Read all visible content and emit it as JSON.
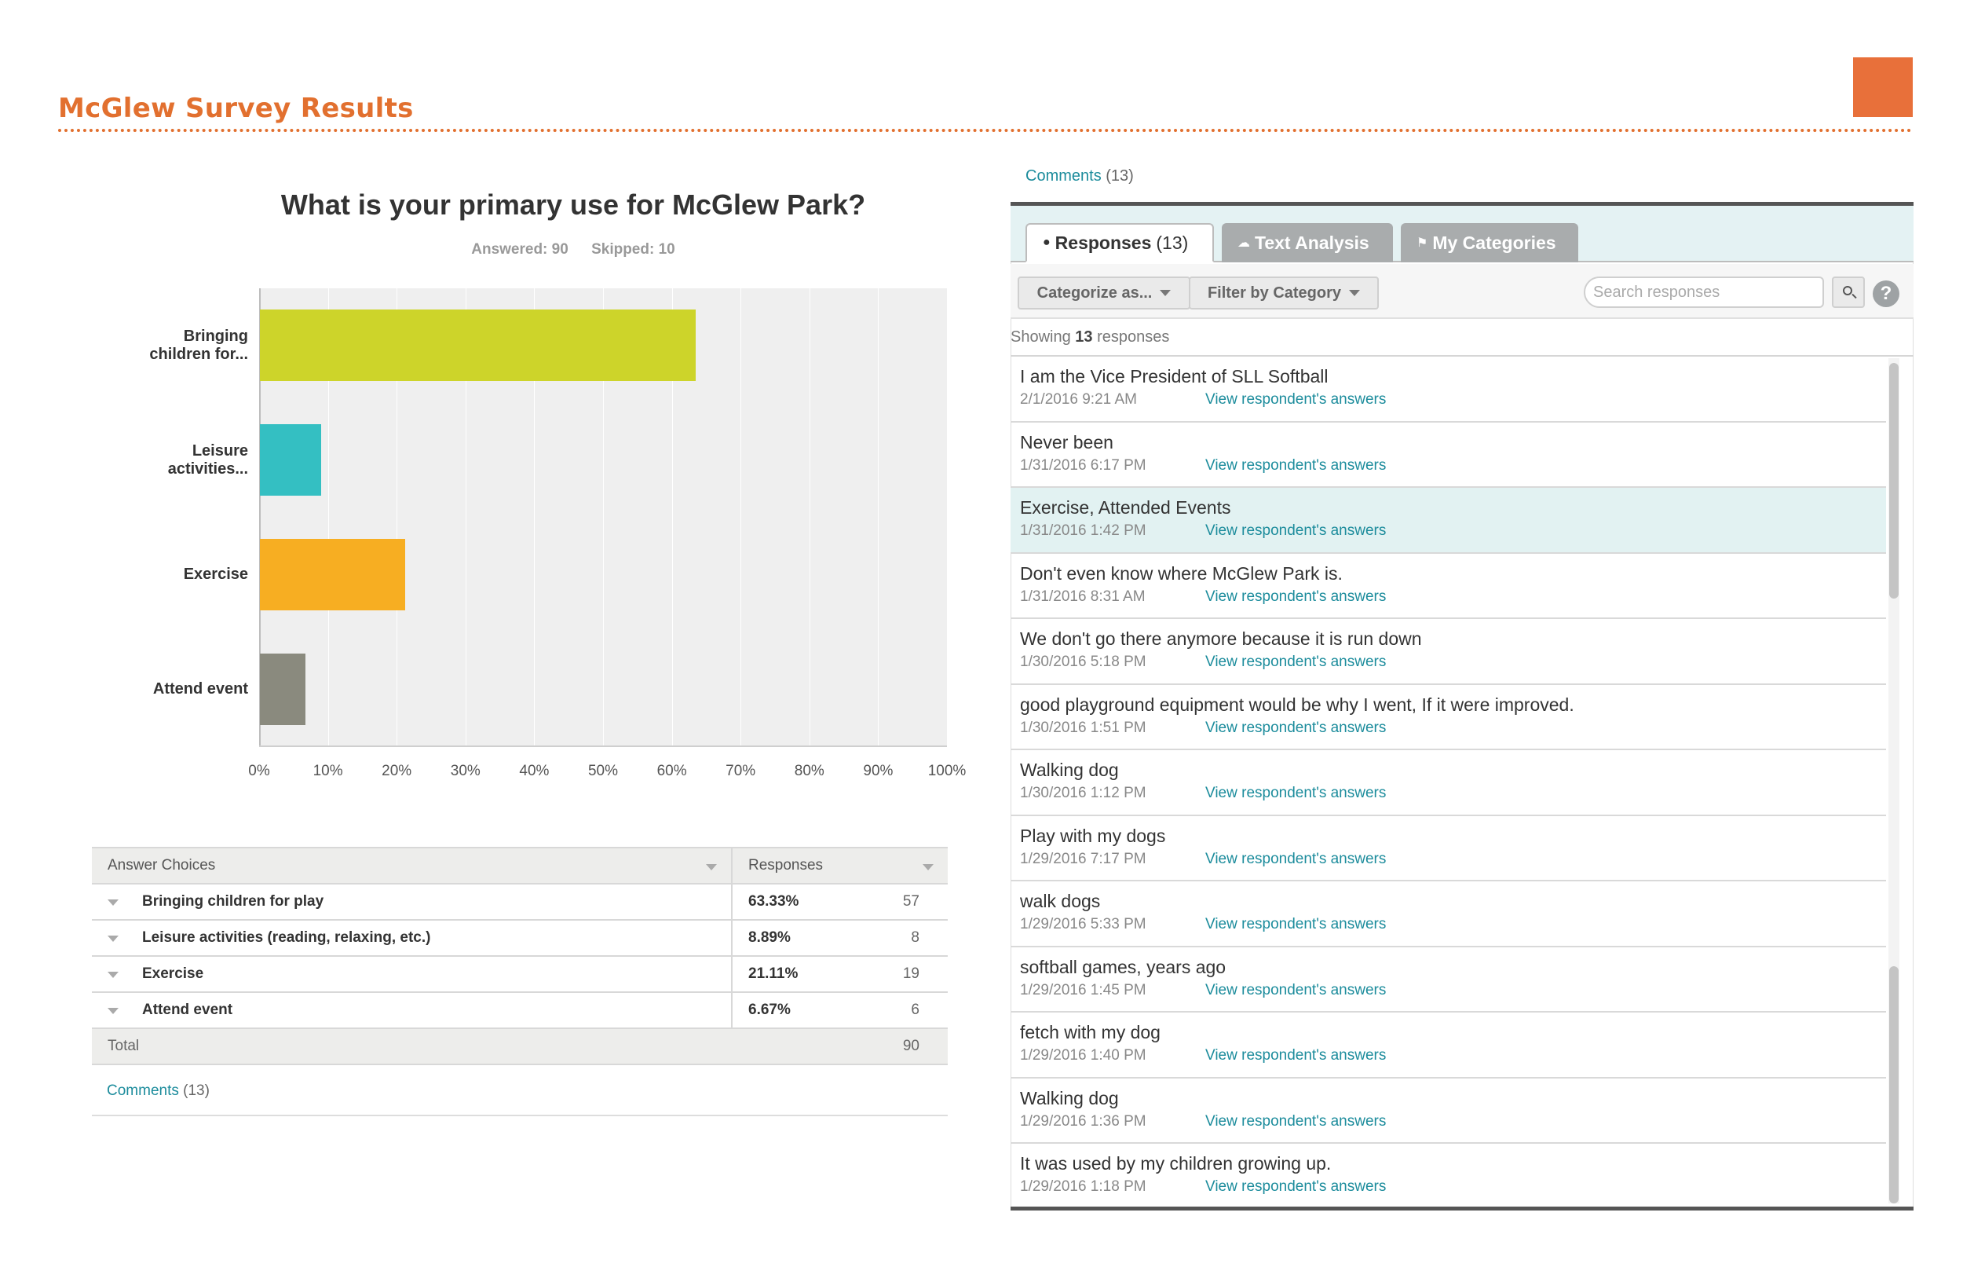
{
  "page": {
    "title": "McGlew Survey Results"
  },
  "question": {
    "title": "What is your primary use for McGlew Park?",
    "answered": "Answered: 90",
    "skipped": "Skipped: 10"
  },
  "chart_data": {
    "type": "bar",
    "orientation": "horizontal",
    "categories": [
      "Bringing children for...",
      "Leisure activities...",
      "Exercise",
      "Attend event"
    ],
    "values": [
      63.33,
      8.89,
      21.11,
      6.67
    ],
    "colors": [
      "#CDD42A",
      "#34BFC2",
      "#F7AE22",
      "#8A8A7E"
    ],
    "xlim": [
      0,
      100
    ],
    "x_ticks": [
      "0%",
      "10%",
      "20%",
      "30%",
      "40%",
      "50%",
      "60%",
      "70%",
      "80%",
      "90%",
      "100%"
    ],
    "grid": true
  },
  "table": {
    "headers": {
      "choices": "Answer Choices",
      "responses": "Responses"
    },
    "rows": [
      {
        "choice": "Bringing children for play",
        "percent": "63.33%",
        "count": "57"
      },
      {
        "choice": "Leisure activities (reading, relaxing, etc.)",
        "percent": "8.89%",
        "count": "8"
      },
      {
        "choice": "Exercise",
        "percent": "21.11%",
        "count": "19"
      },
      {
        "choice": "Attend event",
        "percent": "6.67%",
        "count": "6"
      }
    ],
    "total_label": "Total",
    "total_count": "90"
  },
  "comments": {
    "label": "Comments",
    "count": "(13)"
  },
  "panel": {
    "tabs": {
      "responses": "Responses",
      "responses_count": "(13)",
      "text_analysis": "Text Analysis",
      "my_categories": "My Categories"
    },
    "categorize_label": "Categorize as...",
    "filter_label": "Filter by Category",
    "search_placeholder": "Search responses",
    "help_label": "?",
    "showing_prefix": "Showing",
    "showing_count": "13",
    "showing_suffix": "responses",
    "link_label": "View respondent's answers"
  },
  "responses": [
    {
      "text": "I am the Vice President of SLL Softball",
      "date": "2/1/2016 9:21 AM"
    },
    {
      "text": "Never been",
      "date": "1/31/2016 6:17 PM"
    },
    {
      "text": "Exercise, Attended Events",
      "date": "1/31/2016 1:42 PM"
    },
    {
      "text": "Don't even know where McGlew Park is.",
      "date": "1/31/2016 8:31 AM"
    },
    {
      "text": "We don't go there anymore because it is run down",
      "date": "1/30/2016 5:18 PM"
    },
    {
      "text": "good playground equipment would be why I went, If it were improved.",
      "date": "1/30/2016 1:51 PM"
    },
    {
      "text": "Walking dog",
      "date": "1/30/2016 1:12 PM"
    },
    {
      "text": "Play with my dogs",
      "date": "1/29/2016 7:17 PM"
    },
    {
      "text": "walk dogs",
      "date": "1/29/2016 5:33 PM"
    },
    {
      "text": "softball games, years ago",
      "date": "1/29/2016 1:45 PM"
    },
    {
      "text": "fetch with my dog",
      "date": "1/29/2016 1:40 PM"
    },
    {
      "text": "Walking dog",
      "date": "1/29/2016 1:36 PM"
    },
    {
      "text": "It was used by my children growing up.",
      "date": "1/29/2016 1:18 PM"
    }
  ]
}
